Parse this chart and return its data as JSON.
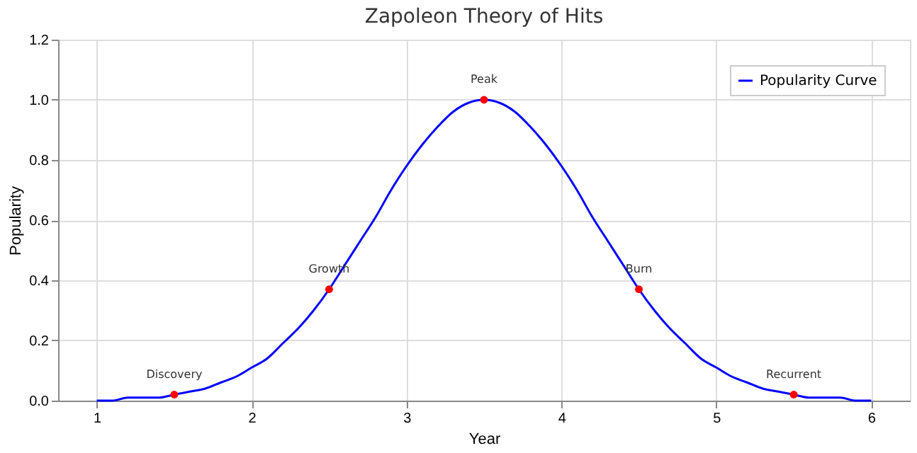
{
  "chart_data": {
    "type": "line",
    "title": "Zapoleon Theory of Hits",
    "xlabel": "Year",
    "ylabel": "Popularity",
    "xlim": [
      0.75,
      6.25
    ],
    "xticks": [
      1,
      2,
      3,
      4,
      5,
      6
    ],
    "ylim": [
      0,
      1.2
    ],
    "yticks": [
      {
        "value": 0,
        "label": "0.0"
      },
      0.2,
      0.4,
      0.6,
      0.8,
      {
        "value": 1,
        "label": "1.0"
      },
      1.2
    ],
    "grid": true,
    "legend": "top right",
    "series": [
      {
        "name": "Popularity Curve",
        "color": "#0000ff",
        "marker": "none",
        "x": [
          1.0,
          1.1,
          1.2,
          1.3,
          1.4,
          1.5,
          1.6,
          1.7,
          1.8,
          1.9,
          2.0,
          2.1,
          2.2,
          2.3,
          2.4,
          2.5,
          2.6,
          2.7,
          2.8,
          2.9,
          3.0,
          3.1,
          3.2,
          3.3,
          3.4,
          3.5,
          3.6,
          3.7,
          3.8,
          3.9,
          4.0,
          4.1,
          4.2,
          4.3,
          4.4,
          4.5,
          4.6,
          4.7,
          4.8,
          4.9,
          5.0,
          5.1,
          5.2,
          5.3,
          5.4,
          5.5,
          5.6,
          5.7,
          5.8,
          5.9,
          6.0
        ],
        "values": [
          0.0,
          0.0,
          0.01,
          0.01,
          0.01,
          0.02,
          0.03,
          0.04,
          0.06,
          0.08,
          0.11,
          0.14,
          0.19,
          0.24,
          0.3,
          0.37,
          0.45,
          0.53,
          0.61,
          0.7,
          0.78,
          0.85,
          0.91,
          0.96,
          0.99,
          1.0,
          0.99,
          0.96,
          0.91,
          0.85,
          0.78,
          0.7,
          0.61,
          0.53,
          0.45,
          0.37,
          0.3,
          0.24,
          0.19,
          0.14,
          0.11,
          0.08,
          0.06,
          0.04,
          0.03,
          0.02,
          0.01,
          0.01,
          0.01,
          0.0,
          0.0
        ]
      },
      {
        "color": "#ff0000",
        "type": "scatter",
        "marker": "circle",
        "x": [
          1.5,
          2.5,
          3.5,
          4.5,
          5.5
        ],
        "values": [
          0.02,
          0.37,
          1.0,
          0.37,
          0.02
        ]
      }
    ],
    "annotations": [
      {
        "text": "Discovery",
        "x": 1.5,
        "y": 0.02
      },
      {
        "text": "Growth",
        "x": 2.5,
        "y": 0.37
      },
      {
        "text": "Peak",
        "x": 3.5,
        "y": 1.0
      },
      {
        "text": "Burn",
        "x": 4.5,
        "y": 0.37
      },
      {
        "text": "Recurrent",
        "x": 5.5,
        "y": 0.02
      }
    ]
  }
}
